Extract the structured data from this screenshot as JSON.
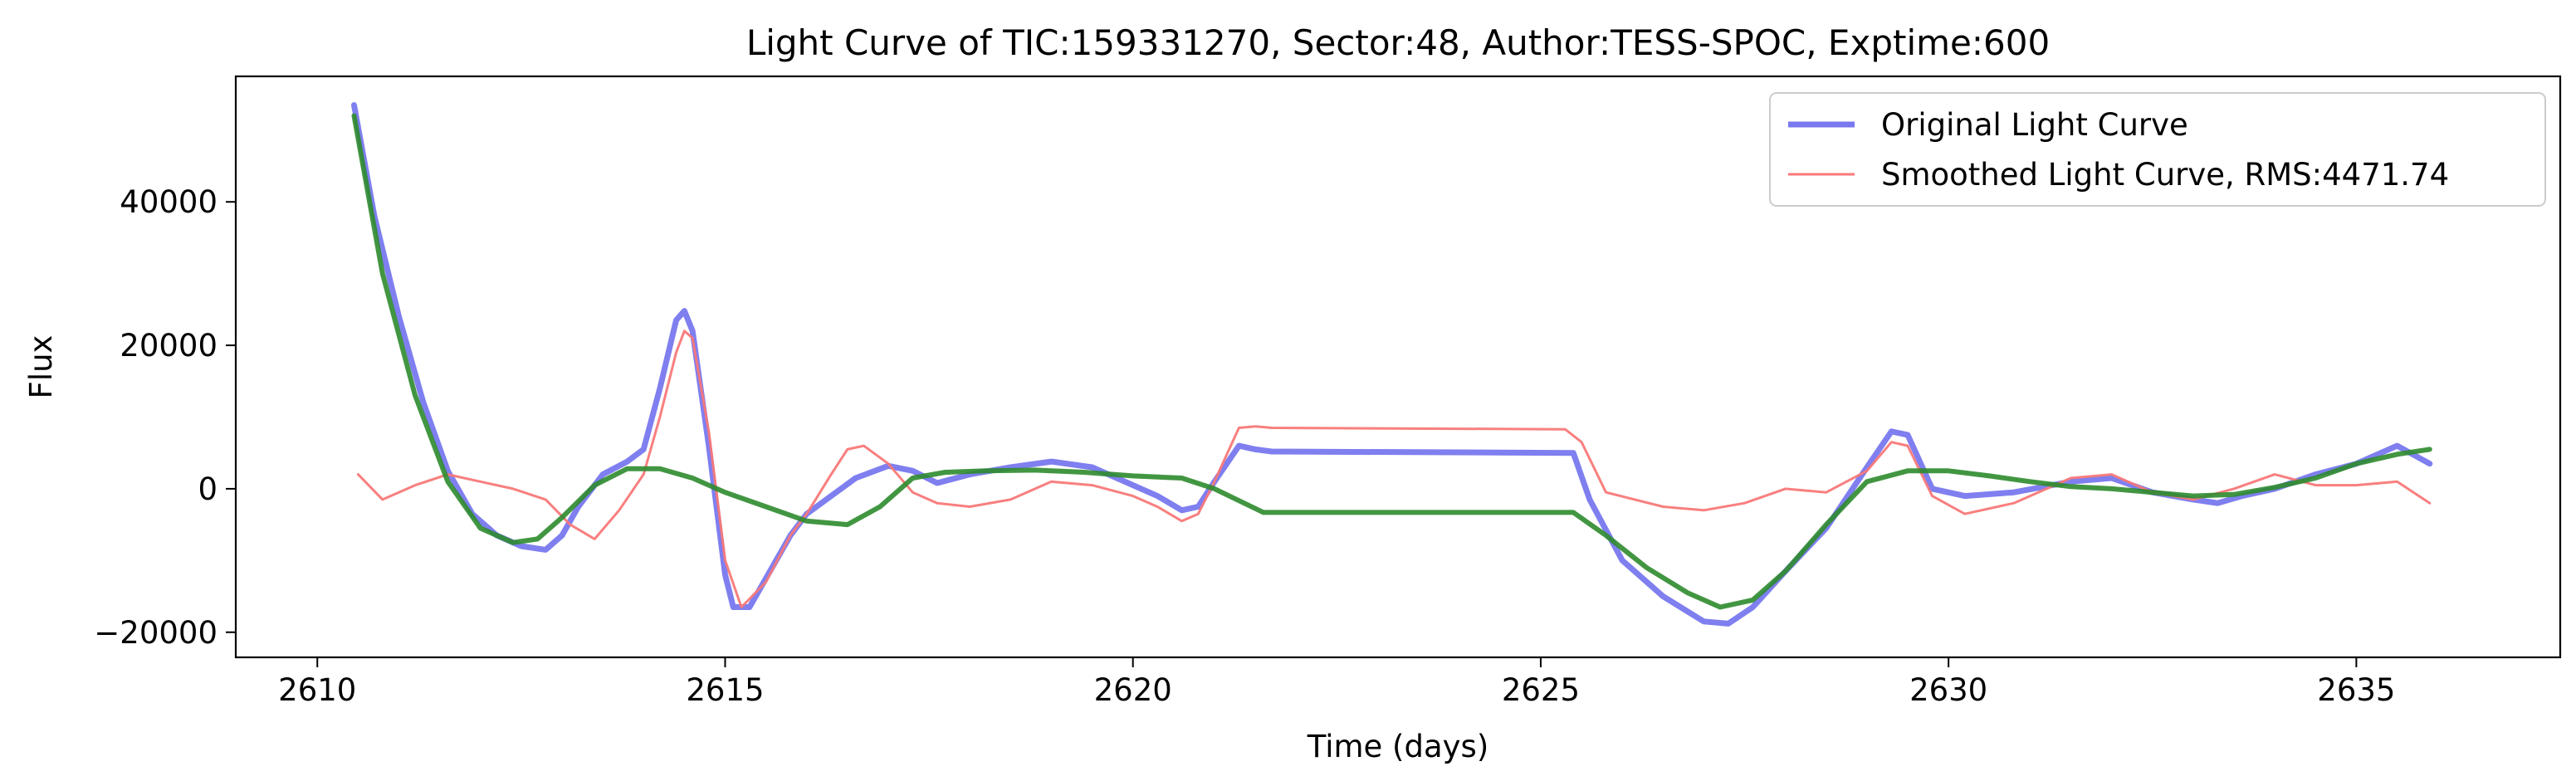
{
  "chart_data": {
    "type": "line",
    "title": "Light Curve of TIC:159331270, Sector:48, Author:TESS-SPOC, Exptime:600",
    "xlabel": "Time (days)",
    "ylabel": "Flux",
    "xlim": [
      2609,
      2637.5
    ],
    "ylim": [
      -23500,
      57500
    ],
    "xticks": [
      2610,
      2615,
      2620,
      2625,
      2630,
      2635
    ],
    "yticks": [
      -20000,
      0,
      20000,
      40000
    ],
    "ytick_labels": [
      "−20000",
      "0",
      "20000",
      "40000"
    ],
    "grid": false,
    "legend_position": "top-right",
    "series": [
      {
        "name": "Original Light Curve",
        "color": "#7878ef",
        "x": [
          2610.45,
          2610.7,
          2611.0,
          2611.3,
          2611.6,
          2611.9,
          2612.2,
          2612.5,
          2612.8,
          2613.0,
          2613.2,
          2613.5,
          2613.8,
          2614.0,
          2614.2,
          2614.4,
          2614.5,
          2614.6,
          2614.8,
          2615.0,
          2615.1,
          2615.3,
          2615.5,
          2615.8,
          2616.0,
          2616.3,
          2616.6,
          2617.0,
          2617.3,
          2617.6,
          2618.0,
          2618.5,
          2619.0,
          2619.5,
          2620.0,
          2620.3,
          2620.6,
          2620.8,
          2621.0,
          2621.3,
          2621.5,
          2621.7,
          2625.4,
          2625.6,
          2626.0,
          2626.5,
          2627.0,
          2627.3,
          2627.6,
          2628.0,
          2628.5,
          2629.0,
          2629.3,
          2629.5,
          2629.8,
          2630.2,
          2630.8,
          2631.5,
          2632.0,
          2632.5,
          2633.0,
          2633.3,
          2633.6,
          2634.0,
          2634.5,
          2635.0,
          2635.5,
          2635.9
        ],
        "y": [
          53500,
          38000,
          24000,
          12000,
          2500,
          -3500,
          -6500,
          -8000,
          -8500,
          -6500,
          -2500,
          2000,
          3800,
          5500,
          14000,
          23500,
          24800,
          22000,
          6000,
          -12000,
          -16500,
          -16500,
          -12500,
          -6500,
          -3500,
          -1000,
          1500,
          3200,
          2500,
          800,
          2000,
          3000,
          3800,
          3000,
          500,
          -1000,
          -3000,
          -2500,
          1000,
          6000,
          5500,
          5200,
          5000,
          -1500,
          -10000,
          -15000,
          -18500,
          -18800,
          -16500,
          -11500,
          -5500,
          3000,
          8000,
          7500,
          0,
          -1000,
          -500,
          1000,
          1500,
          -500,
          -1500,
          -2000,
          -1000,
          0,
          2000,
          3500,
          6000,
          3500
        ]
      },
      {
        "name": "Smoothed Light Curve, RMS:4471.74",
        "color": "#f87878",
        "x": [
          2610.5,
          2610.8,
          2611.2,
          2611.6,
          2612.0,
          2612.4,
          2612.8,
          2613.1,
          2613.4,
          2613.7,
          2614.0,
          2614.2,
          2614.4,
          2614.5,
          2614.6,
          2614.8,
          2615.0,
          2615.2,
          2615.5,
          2615.8,
          2616.0,
          2616.3,
          2616.5,
          2616.7,
          2617.0,
          2617.3,
          2617.6,
          2618.0,
          2618.5,
          2619.0,
          2619.5,
          2620.0,
          2620.3,
          2620.6,
          2620.8,
          2621.0,
          2621.3,
          2621.5,
          2621.7,
          2625.3,
          2625.5,
          2625.8,
          2626.5,
          2627.0,
          2627.5,
          2628.0,
          2628.5,
          2629.0,
          2629.3,
          2629.5,
          2629.8,
          2630.2,
          2630.8,
          2631.5,
          2632.0,
          2632.5,
          2633.0,
          2633.5,
          2634.0,
          2634.5,
          2635.0,
          2635.5,
          2635.9
        ],
        "y": [
          2000,
          -1500,
          500,
          2000,
          1000,
          0,
          -1500,
          -5000,
          -7000,
          -3000,
          2000,
          10000,
          19000,
          22000,
          21000,
          8000,
          -10000,
          -16500,
          -13000,
          -6500,
          -3500,
          2000,
          5500,
          6000,
          3500,
          -500,
          -2000,
          -2500,
          -1500,
          1000,
          500,
          -1000,
          -2500,
          -4500,
          -3500,
          1000,
          8500,
          8700,
          8500,
          8300,
          6500,
          -500,
          -2500,
          -3000,
          -2000,
          0,
          -500,
          2500,
          6500,
          6000,
          -1000,
          -3500,
          -2000,
          1500,
          2000,
          -500,
          -1500,
          0,
          2000,
          500,
          500,
          1000,
          -2000
        ]
      },
      {
        "name": "",
        "color": "#2e8b2e",
        "x": [
          2610.45,
          2610.8,
          2611.2,
          2611.6,
          2612.0,
          2612.4,
          2612.7,
          2613.0,
          2613.4,
          2613.8,
          2614.2,
          2614.6,
          2615.0,
          2615.5,
          2616.0,
          2616.5,
          2616.9,
          2617.3,
          2617.7,
          2618.2,
          2618.8,
          2619.4,
          2620.0,
          2620.6,
          2621.0,
          2621.6,
          2625.4,
          2625.8,
          2626.3,
          2626.8,
          2627.2,
          2627.6,
          2628.0,
          2628.5,
          2629.0,
          2629.5,
          2630.0,
          2630.5,
          2631.0,
          2631.5,
          2632.0,
          2632.5,
          2633.0,
          2633.5,
          2634.0,
          2634.5,
          2635.0,
          2635.5,
          2635.9
        ],
        "y": [
          52000,
          30000,
          13000,
          1000,
          -5500,
          -7500,
          -7000,
          -4000,
          500,
          2800,
          2800,
          1500,
          -500,
          -2500,
          -4500,
          -5000,
          -2500,
          1500,
          2300,
          2500,
          2600,
          2300,
          1800,
          1500,
          0,
          -3300,
          -3300,
          -6500,
          -11000,
          -14500,
          -16500,
          -15500,
          -11500,
          -5000,
          1000,
          2500,
          2500,
          1800,
          1000,
          300,
          0,
          -500,
          -1000,
          -800,
          200,
          1500,
          3500,
          4800,
          5500
        ]
      }
    ]
  }
}
